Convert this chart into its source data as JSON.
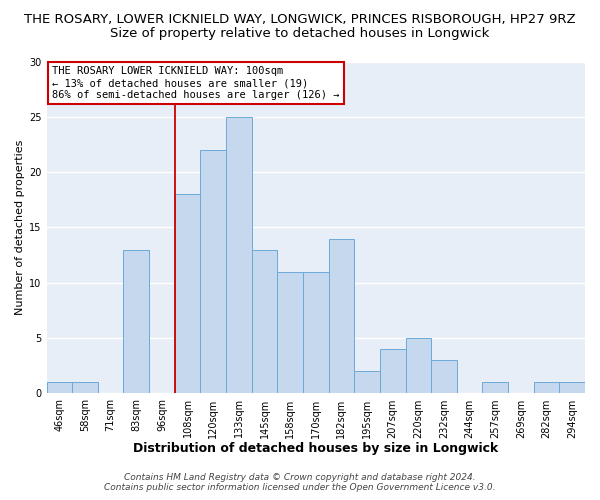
{
  "title": "THE ROSARY, LOWER ICKNIELD WAY, LONGWICK, PRINCES RISBOROUGH, HP27 9RZ",
  "subtitle": "Size of property relative to detached houses in Longwick",
  "xlabel": "Distribution of detached houses by size in Longwick",
  "ylabel": "Number of detached properties",
  "bar_color": "#c5d8ee",
  "bar_edge_color": "#6baad8",
  "categories": [
    "46sqm",
    "58sqm",
    "71sqm",
    "83sqm",
    "96sqm",
    "108sqm",
    "120sqm",
    "133sqm",
    "145sqm",
    "158sqm",
    "170sqm",
    "182sqm",
    "195sqm",
    "207sqm",
    "220sqm",
    "232sqm",
    "244sqm",
    "257sqm",
    "269sqm",
    "282sqm",
    "294sqm"
  ],
  "values": [
    1,
    1,
    0,
    13,
    0,
    18,
    22,
    25,
    13,
    11,
    11,
    14,
    2,
    4,
    5,
    3,
    0,
    1,
    0,
    1,
    1
  ],
  "ylim": [
    0,
    30
  ],
  "yticks": [
    0,
    5,
    10,
    15,
    20,
    25,
    30
  ],
  "vline_x": 4.5,
  "vline_color": "#cc0000",
  "annotation_title": "THE ROSARY LOWER ICKNIELD WAY: 100sqm",
  "annotation_line1": "← 13% of detached houses are smaller (19)",
  "annotation_line2": "86% of semi-detached houses are larger (126) →",
  "annotation_box_color": "#ffffff",
  "annotation_box_edge": "#cc0000",
  "footer_line1": "Contains HM Land Registry data © Crown copyright and database right 2024.",
  "footer_line2": "Contains public sector information licensed under the Open Government Licence v3.0.",
  "background_color": "#ffffff",
  "plot_background": "#e8eef7",
  "grid_color": "#ffffff",
  "title_fontsize": 9.5,
  "subtitle_fontsize": 9.5,
  "xlabel_fontsize": 9,
  "ylabel_fontsize": 8,
  "tick_fontsize": 7,
  "footer_fontsize": 6.5,
  "annotation_fontsize": 7.5
}
